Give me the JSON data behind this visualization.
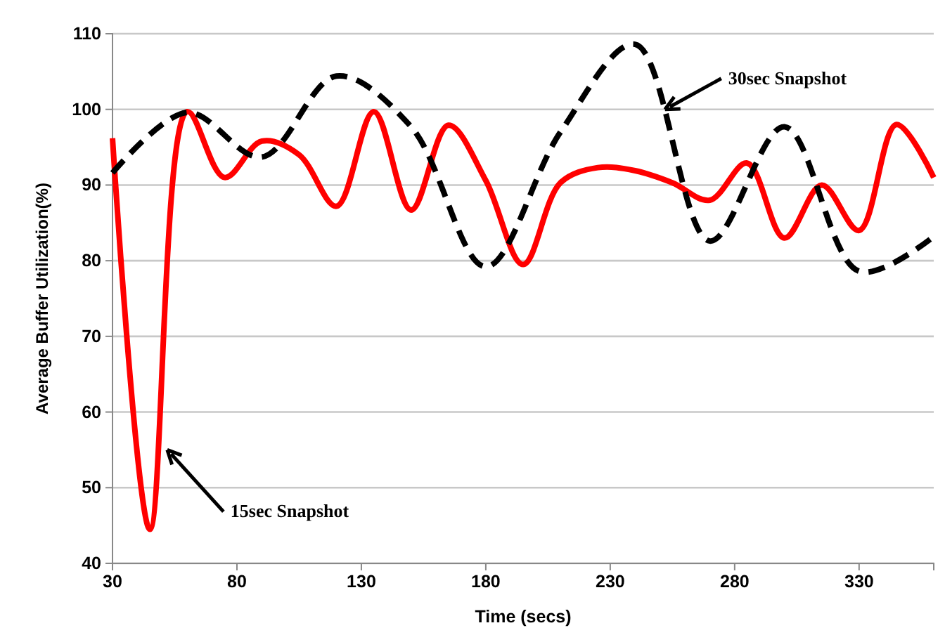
{
  "chart_data": {
    "type": "line",
    "xlabel": "Time (secs)",
    "ylabel": "Average Buffer Utilization(%)",
    "xlim": [
      30,
      360
    ],
    "xticks": [
      30,
      80,
      130,
      180,
      230,
      280,
      330
    ],
    "ylim": [
      40,
      110
    ],
    "yticks": [
      40,
      50,
      60,
      70,
      80,
      90,
      100,
      110
    ],
    "grid": "y",
    "marker": "none",
    "series": [
      {
        "color": "#ff0000",
        "line_style": "solid",
        "x": [
          30,
          45,
          60,
          75,
          90,
          105,
          120,
          135,
          150,
          165,
          180,
          195,
          210,
          225,
          240,
          255,
          270,
          285,
          300,
          315,
          330,
          345,
          360
        ],
        "values": [
          96.2,
          44.5,
          99.7,
          91,
          95.8,
          94,
          87.2,
          99.7,
          86.7,
          97.9,
          90.6,
          79.5,
          90.3,
          92.3,
          91.9,
          90.3,
          88,
          92.9,
          83,
          90,
          84,
          98,
          91
        ]
      },
      {
        "color": "#000000",
        "line_style": "dashed",
        "x": [
          30,
          60,
          90,
          120,
          150,
          180,
          210,
          240,
          270,
          300,
          330,
          360
        ],
        "values": [
          91.6,
          99.6,
          93.7,
          104.4,
          97.7,
          79.2,
          97,
          108.6,
          82.6,
          97.7,
          78.6,
          83.2
        ]
      }
    ],
    "annotations": [
      {
        "text": "15sec Snapshot",
        "x": 52,
        "y": 55
      },
      {
        "text": "30sec Snapshot",
        "x": 252,
        "y": 100
      }
    ]
  }
}
